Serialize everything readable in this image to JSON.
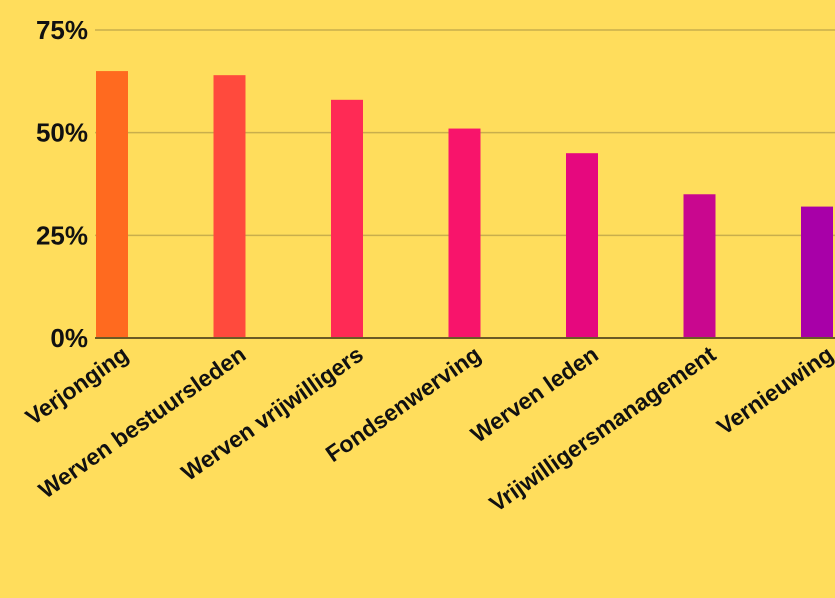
{
  "chart_data": {
    "type": "bar",
    "categories": [
      "Verjonging",
      "Werven bestuursleden",
      "Werven vrijwilligers",
      "Fondsenwerving",
      "Werven leden",
      "Vrijwilligersmanagement",
      "Vernieuwing"
    ],
    "values": [
      65,
      64,
      58,
      51,
      45,
      35,
      32
    ],
    "y_ticks": [
      "0%",
      "25%",
      "50%",
      "75%"
    ],
    "y_tick_values": [
      0,
      25,
      50,
      75
    ],
    "ylim": [
      0,
      75
    ],
    "grid": true,
    "title": "",
    "xlabel": "",
    "ylabel": "",
    "bar_colors": [
      "#FF6A1F",
      "#FF4A3D",
      "#FF2A55",
      "#F8146B",
      "#E6087E",
      "#C9078F",
      "#A800A8"
    ],
    "background": "#FFDD5C"
  }
}
